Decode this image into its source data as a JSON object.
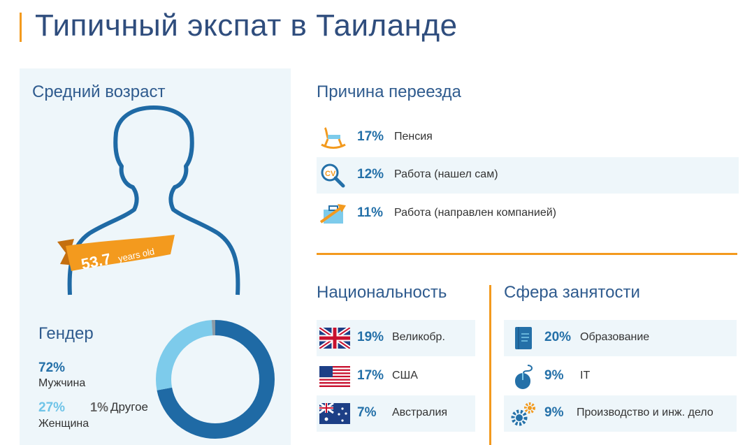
{
  "title": "Типичный экспат в Таиланде",
  "age": {
    "heading": "Средний возраст",
    "value": "53.7",
    "unit": "years old"
  },
  "gender": {
    "heading": "Гендер",
    "male_pct": "72%",
    "male_label": "Мужчина",
    "female_pct": "27%",
    "female_label": "Женщина",
    "other_pct": "1%",
    "other_label": "Другое",
    "male_value": 72,
    "female_value": 27,
    "other_value": 1,
    "colors": {
      "male": "#1f6aa5",
      "female": "#7dcbeb",
      "other": "#8a9aa6"
    }
  },
  "reasons": {
    "heading": "Причина переезда",
    "items": [
      {
        "pct": "17%",
        "label": "Пенсия",
        "icon": "rocking-chair-icon"
      },
      {
        "pct": "12%",
        "label": "Работа (нашел сам)",
        "icon": "cv-magnifier-icon"
      },
      {
        "pct": "11%",
        "label": "Работа (направлен компанией)",
        "icon": "briefcase-arrow-icon"
      }
    ]
  },
  "nationality": {
    "heading": "Национальность",
    "items": [
      {
        "pct": "19%",
        "label": "Великобр.",
        "icon": "uk-flag-icon"
      },
      {
        "pct": "17%",
        "label": "США",
        "icon": "us-flag-icon"
      },
      {
        "pct": "7%",
        "label": "Австралия",
        "icon": "australia-flag-icon"
      }
    ]
  },
  "occupation": {
    "heading": "Сфера занятости",
    "items": [
      {
        "pct": "20%",
        "label": "Образование",
        "icon": "notebook-icon"
      },
      {
        "pct": "9%",
        "label": "IT",
        "icon": "mouse-icon"
      },
      {
        "pct": "9%",
        "label": "Производство и инж. дело",
        "icon": "gears-icon"
      }
    ]
  },
  "colors": {
    "accent": "#f39a1e",
    "heading": "#2f5b8e",
    "value": "#2470a8",
    "panel": "#eef6fa"
  }
}
